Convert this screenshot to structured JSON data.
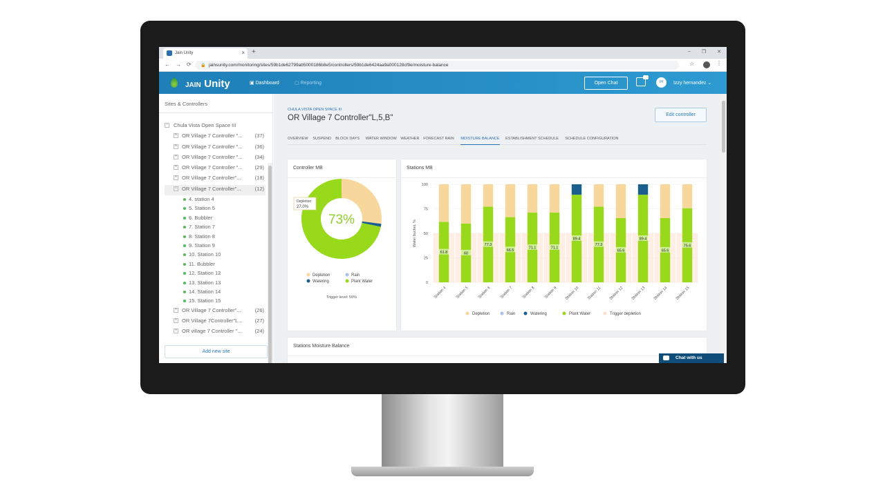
{
  "browser": {
    "tab_title": "Jain Unity",
    "tab_close": "×",
    "new_tab": "+",
    "window_controls": [
      "–",
      "❐",
      "✕"
    ],
    "nav_icons": [
      "←",
      "→",
      "⟳"
    ],
    "url": "jainsunity.com/monitoring/sites/59b1de62799ab5000186b8e5/controllers/59b1de6424aa9a000128cf9e/moisture-balance",
    "lock_icon": "🔒",
    "star_icon": "☆",
    "menu_icon": "⋮"
  },
  "header": {
    "logo_a": "JAIN",
    "logo_b": "Unity",
    "nav_dashboard": "Dashboard",
    "nav_reporting": "Reporting",
    "open_chat": "Open Chat",
    "avatar_initials": "IH",
    "user_name": "Izzy hernandez ⌄"
  },
  "sidebar": {
    "title": "Sites & Controllers",
    "site": "Chula Vista Open Space III",
    "controllers": [
      {
        "label": "OR Village 7 Controller \"...",
        "count": "(37)"
      },
      {
        "label": "OR Village 7 Controller \"...",
        "count": "(36)"
      },
      {
        "label": "OR Village 7 Controller \"...",
        "count": "(34)"
      },
      {
        "label": "OR Village 7 Controller \"...",
        "count": "(29)"
      },
      {
        "label": "OR Village 7 Controller\"...",
        "count": "(18)"
      },
      {
        "label": "OR Village 7 Controller\"...",
        "count": "(12)"
      }
    ],
    "stations": [
      "4.  station 4",
      "5.  Station 5",
      "6.  Bubbler",
      "7.  Station 7",
      "8.  Station 8",
      "9.  Station 9",
      "10.  Station 10",
      "11.  Bubbler",
      "12.  Station 12",
      "13.  Station 13",
      "14.  Station 14",
      "15.  Station 15"
    ],
    "controllers_after": [
      {
        "label": "OR Village 7 Controller\"...",
        "count": "(26)"
      },
      {
        "label": "OR Village 7Controller\"L...",
        "count": "(27)"
      },
      {
        "label": "OR village 7 Controller \"...",
        "count": "(24)"
      }
    ],
    "add_site": "Add new site"
  },
  "main": {
    "breadcrumb": "CHULA VISTA OPEN SPACE III",
    "title": "OR Village 7 Controller\"L,5,B\"",
    "edit_button": "Edit controller",
    "tabs": [
      "OVERVIEW",
      "SUSPEND",
      "BLOCK DAYS",
      "WATER WINDOW",
      "WEATHER",
      "FORECAST RAIN",
      "MOISTURE BALANCE",
      "ESTABLISHMENT SCHEDULE",
      "SCHEDULE CONFIGURATION"
    ],
    "active_tab": "MOISTURE BALANCE",
    "card_controller": "Controller MB",
    "card_stations": "Stations MB",
    "card_moisture": "Stations Moisture Balance",
    "chat_with_us": "Chat with us"
  },
  "chart_data": [
    {
      "type": "pie",
      "center_label": "73%",
      "tooltip_label": "Depletion",
      "tooltip_value": "27.0%",
      "slices": [
        {
          "name": "Depletion",
          "value": 27.0,
          "color": "#f8d79c"
        },
        {
          "name": "Rain",
          "value": 0,
          "color": "#a9bfe3"
        },
        {
          "name": "Watering",
          "value": 1.2,
          "color": "#1b5f8f"
        },
        {
          "name": "Plant Water",
          "value": 71.8,
          "color": "#98d91c"
        }
      ],
      "legend": [
        "Depletion",
        "Rain",
        "Watering",
        "Plant Water"
      ],
      "footer": "Trigger level: 50%"
    },
    {
      "type": "bar",
      "ylabel": "Water bucket, %",
      "ylim": [
        0,
        100
      ],
      "yticks": [
        "0",
        "25",
        "50",
        "75",
        "100"
      ],
      "categories": [
        "Station 4",
        "Station 5",
        "Station 6",
        "Station 7",
        "Station 8",
        "Station 9",
        "Station 10",
        "Station 11",
        "Station 12",
        "Station 13",
        "Station 14",
        "Station 15"
      ],
      "series": [
        {
          "name": "Plant Water",
          "color": "#98d91c",
          "values": [
            61.8,
            60,
            77.3,
            66.5,
            71.1,
            71.1,
            89.4,
            77.3,
            65.6,
            89.4,
            65.6,
            75.6
          ]
        },
        {
          "name": "Watering",
          "color": "#1b5f8f",
          "values": [
            0,
            0,
            0,
            0,
            0,
            0,
            10.6,
            0,
            0,
            10.6,
            0,
            0
          ]
        },
        {
          "name": "Depletion",
          "color": "#f8d79c",
          "values": [
            38.2,
            40,
            22.7,
            33.5,
            28.9,
            28.9,
            0,
            22.7,
            34.4,
            0,
            34.4,
            24.4
          ]
        },
        {
          "name": "Rain",
          "color": "#a9bfe3",
          "values": [
            0,
            0,
            0,
            0,
            0,
            0,
            0,
            0,
            0,
            0,
            0,
            0
          ]
        }
      ],
      "data_labels": [
        "61.8",
        "60",
        "77.3",
        "66.5",
        "71.1",
        "71.1",
        "89.4",
        "77.3",
        "65.6",
        "89.4",
        "65.6",
        "75.6"
      ],
      "trigger_depletion": {
        "name": "Trigger depletion",
        "value": 50,
        "color": "#fde2d2"
      },
      "legend": [
        "Depletion",
        "Rain",
        "Watering",
        "Plant Water",
        "Trigger depletion"
      ]
    }
  ]
}
